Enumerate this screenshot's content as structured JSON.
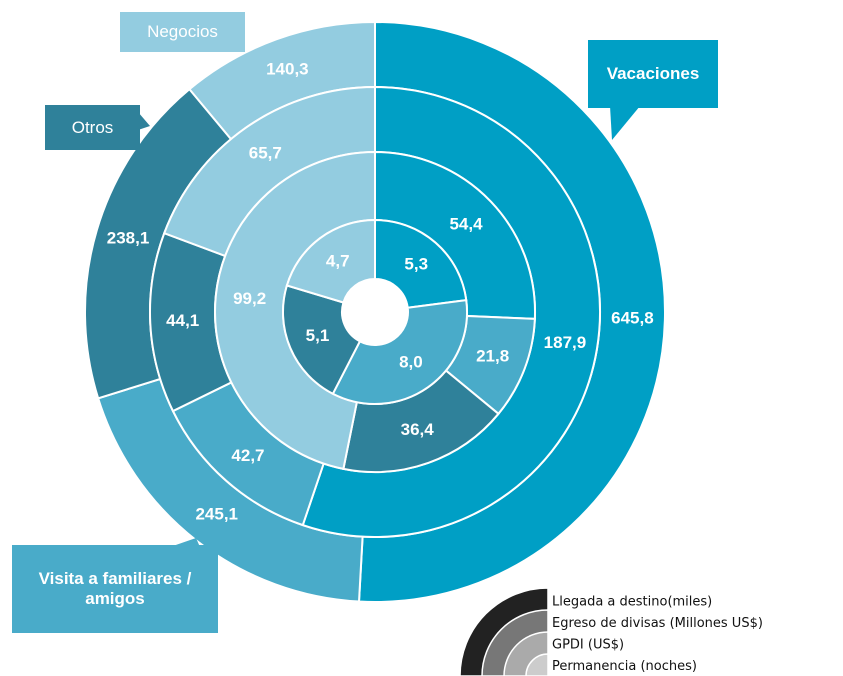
{
  "chart_data": {
    "type": "multi_ring_donut",
    "categories": [
      "Vacaciones",
      "Visita a familiares / amigos",
      "Otros",
      "Negocios"
    ],
    "colors": [
      "#009fc5",
      "#49abc9",
      "#2f819a",
      "#93cce0"
    ],
    "series": [
      {
        "name": "Llegada a destino(miles)",
        "color": "#222222",
        "values": [
          645.8,
          245.1,
          238.1,
          140.3
        ],
        "value_labels": [
          "645,8",
          "245,1",
          "238,1",
          "140,3"
        ]
      },
      {
        "name": "Egreso de divisas (Millones US$)",
        "color": "#777777",
        "values": [
          187.9,
          42.7,
          44.1,
          65.7
        ],
        "value_labels": [
          "187,9",
          "42,7",
          "44,1",
          "65,7"
        ]
      },
      {
        "name": "GPDI (US$)",
        "color": "#aaaaaa",
        "values": [
          54.4,
          21.8,
          36.4,
          99.2
        ],
        "value_labels": [
          "54,4",
          "21,8",
          "36,4",
          "99,2"
        ]
      },
      {
        "name": "Permanencia (noches)",
        "color": "#cccccc",
        "values": [
          5.3,
          8.0,
          5.1,
          4.7
        ],
        "value_labels": [
          "5,3",
          "8,0",
          "5,1",
          "4,7"
        ]
      }
    ]
  }
}
